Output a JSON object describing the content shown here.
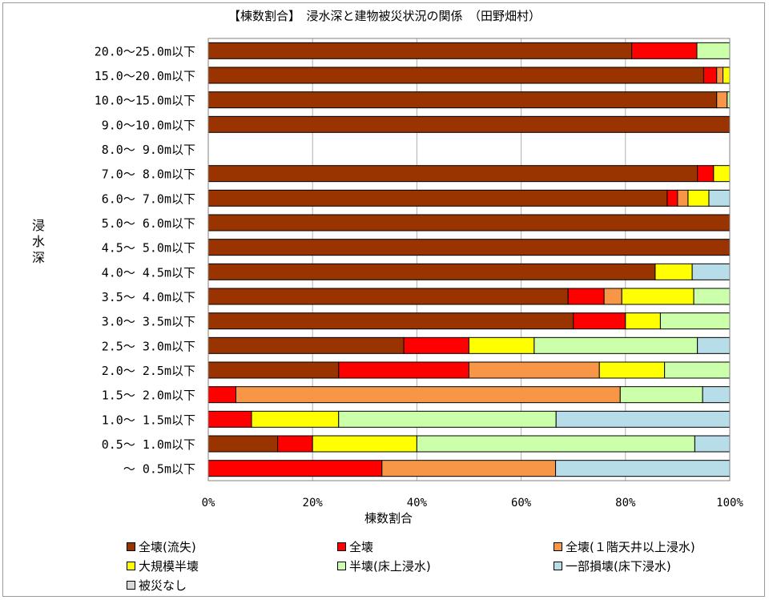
{
  "chart_data": {
    "type": "bar",
    "orientation": "horizontal",
    "stacked": "percent",
    "title": "【棟数割合】　浸水深と建物被災状況の関係　（田野畑村）",
    "xlabel": "棟数割合",
    "ylabel": "浸水深",
    "xlim": [
      0,
      100
    ],
    "x_ticks": [
      "0%",
      "20%",
      "40%",
      "60%",
      "80%",
      "100%"
    ],
    "grid": "vertical",
    "legend_position": "bottom",
    "categories": [
      "20.0～25.0m以下",
      "15.0～20.0m以下",
      "10.0～15.0m以下",
      "9.0～10.0m以下",
      "8.0～ 9.0m以下",
      "7.0～ 8.0m以下",
      "6.0～ 7.0m以下",
      "5.0～ 6.0m以下",
      "4.5～ 5.0m以下",
      "4.0～ 4.5m以下",
      "3.5～ 4.0m以下",
      "3.0～ 3.5m以下",
      "2.5～ 3.0m以下",
      "2.0～ 2.5m以下",
      "1.5～ 2.0m以下",
      "1.0～ 1.5m以下",
      "0.5～ 1.0m以下",
      "～ 0.5m以下"
    ],
    "series": [
      {
        "name": "全壊(流失)",
        "color": "#993300",
        "values": [
          81.2,
          95.0,
          97.5,
          100,
          0,
          93.8,
          88.0,
          100,
          100,
          85.7,
          69.0,
          70.0,
          37.5,
          25.0,
          0,
          0,
          13.3,
          0
        ]
      },
      {
        "name": "全壊",
        "color": "#ff0000",
        "values": [
          12.5,
          2.5,
          0,
          0,
          0,
          3.1,
          2.0,
          0,
          0,
          0,
          6.9,
          10.0,
          12.5,
          25.0,
          5.3,
          8.3,
          6.7,
          33.3
        ]
      },
      {
        "name": "全壊(１階天井以上浸水)",
        "color": "#f79646",
        "values": [
          0,
          1.2,
          2.0,
          0,
          0,
          0,
          2.0,
          0,
          0,
          0,
          3.4,
          0,
          0,
          25.0,
          73.7,
          0,
          0,
          33.3
        ]
      },
      {
        "name": "大規模半壊",
        "color": "#ffff00",
        "values": [
          0,
          1.3,
          0,
          0,
          0,
          3.1,
          4.0,
          0,
          0,
          7.1,
          13.8,
          6.7,
          12.5,
          12.5,
          0,
          16.7,
          20.0,
          0
        ]
      },
      {
        "name": "半壊(床上浸水)",
        "color": "#ccffaa",
        "values": [
          6.3,
          0,
          0.5,
          0,
          0,
          0,
          0,
          0,
          0,
          0,
          6.9,
          13.3,
          31.3,
          12.5,
          15.8,
          41.7,
          53.3,
          0
        ]
      },
      {
        "name": "一部損壊(床下浸水)",
        "color": "#b7dde8",
        "values": [
          0,
          0,
          0,
          0,
          0,
          0,
          4.0,
          0,
          0,
          7.2,
          0,
          0,
          6.2,
          0,
          5.2,
          33.3,
          6.7,
          33.4
        ]
      },
      {
        "name": "被災なし",
        "color": "#d9d9d9",
        "values": [
          0,
          0,
          0,
          0,
          0,
          0,
          0,
          0,
          0,
          0,
          0,
          0,
          0,
          0,
          0,
          0,
          0,
          0
        ]
      }
    ]
  }
}
